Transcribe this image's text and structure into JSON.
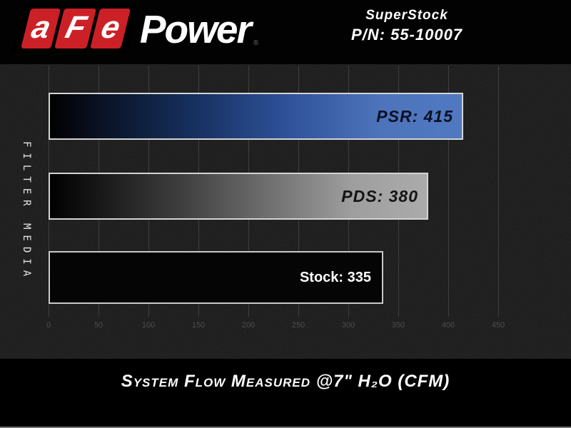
{
  "header": {
    "logo": {
      "segments": [
        "a",
        "F",
        "e"
      ],
      "wordmark": "Power",
      "registered": "®",
      "brand_red": "#cc2027"
    },
    "product": {
      "line1": "SuperStock",
      "line2": "P/N: 55-10007"
    }
  },
  "chart_data": {
    "type": "bar",
    "orientation": "horizontal",
    "title": "",
    "categories": [
      "PSR",
      "PDS",
      "Stock"
    ],
    "values": [
      415,
      380,
      335
    ],
    "bar_labels": [
      "PSR: 415",
      "PDS: 380",
      "Stock: 335"
    ],
    "series_styles": [
      "blue-gradient",
      "silver-gradient",
      "solid-black"
    ],
    "ylabel": "FILTER MEDIA",
    "xlabel": "System Flow Measured @7\" H₂O (CFM)",
    "xlim": [
      0,
      475
    ],
    "xticks": [
      0,
      50,
      100,
      150,
      200,
      250,
      300,
      350,
      400,
      450
    ],
    "grid": true,
    "legend": false,
    "colors": {
      "psr_blue": "#4d74bb",
      "pds_silver": "#a8a8a8",
      "stock_black": "#050505",
      "plot_background": "#151515"
    }
  }
}
